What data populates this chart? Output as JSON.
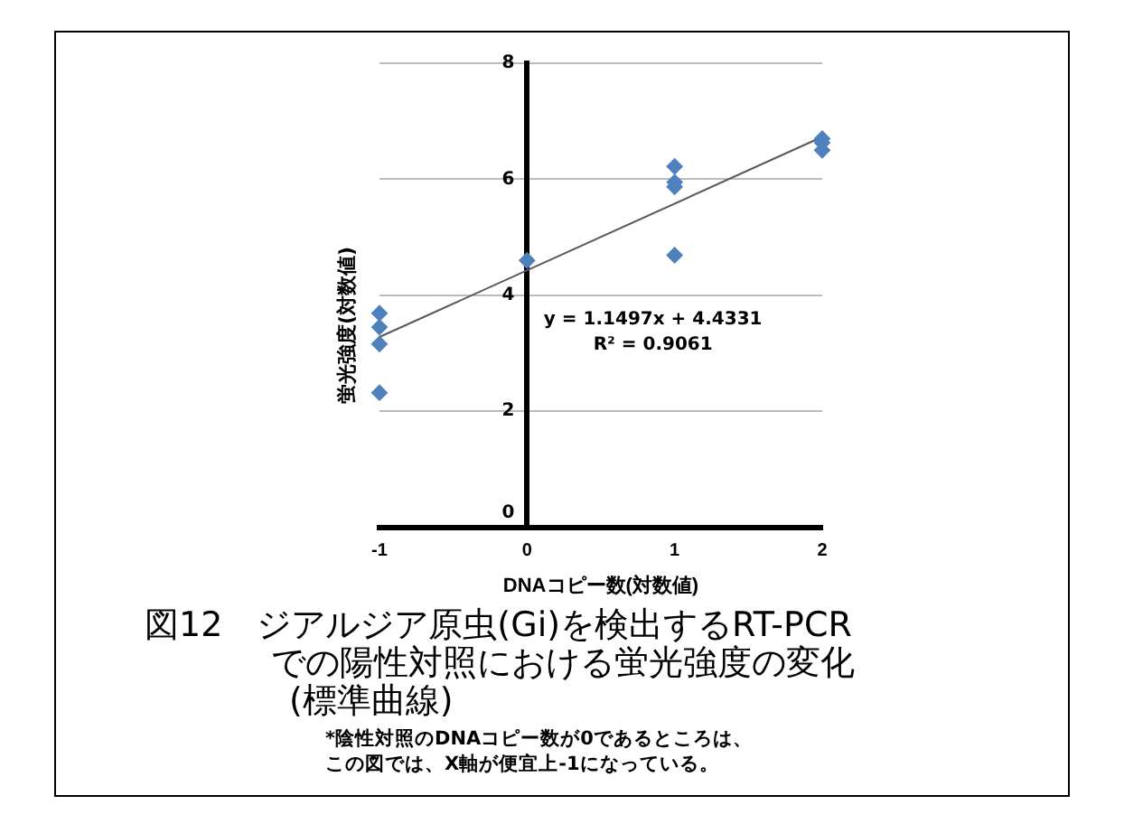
{
  "chart_data": {
    "type": "scatter",
    "title": "図12　ジアルジア原虫(Gi)を検出するRT-PCR\nでの陽性対照における蛍光強度の変化\n(標準曲線)",
    "xlabel": "DNAコピー数(対数値)",
    "ylabel": "蛍光強度(対数値)",
    "x": [
      -1,
      -1,
      -1,
      -1,
      0,
      1,
      1,
      1,
      1,
      2,
      2,
      2
    ],
    "series": [
      {
        "color": "#4f81bd",
        "values": [
          3.69,
          3.45,
          3.16,
          2.32,
          4.6,
          6.22,
          5.95,
          5.87,
          4.69,
          6.7,
          6.63,
          6.5
        ],
        "marker": "diamond"
      },
      {
        "type": "line",
        "x": [
          -1,
          2
        ],
        "values": [
          3.28,
          6.73
        ],
        "color": "#595959",
        "marker": "none"
      }
    ],
    "xlim": [
      -1,
      2
    ],
    "xticks": [
      -1,
      0,
      1,
      2
    ],
    "ylim": [
      0,
      8
    ],
    "yticks": [
      0,
      2,
      4,
      6,
      8
    ],
    "grid": "y",
    "legend": false,
    "annotations": [
      "y = 1.1497x + 4.4331",
      "R² = 0.9061",
      "*陰性対照のDNAコピー数が0であるところは、",
      "この図では、X軸が便宜上-1になっている。"
    ]
  }
}
